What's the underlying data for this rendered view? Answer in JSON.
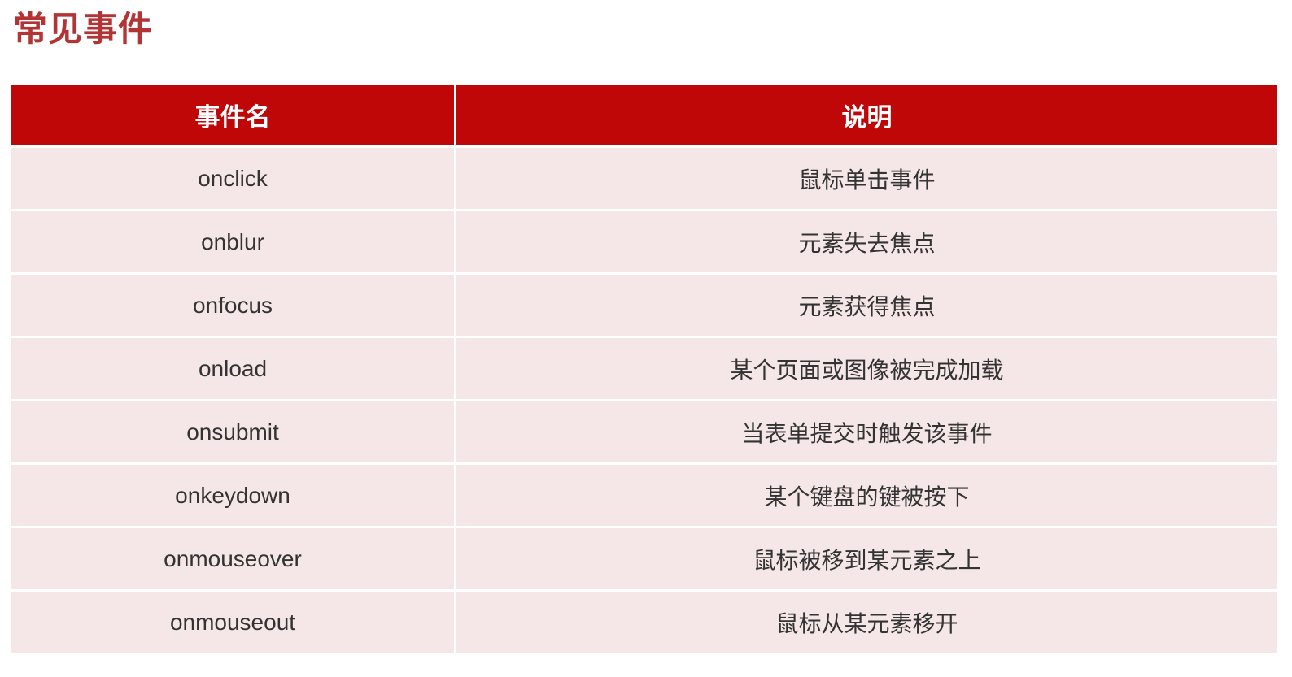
{
  "page": {
    "title": "常见事件",
    "background_color": "#ffffff"
  },
  "colors": {
    "title_text": "#b23434",
    "header_background": "#c00708",
    "header_text": "#ffffff",
    "row_background": "#f5e6e7",
    "row_text": "#333333",
    "cell_divider": "#ffffff"
  },
  "table": {
    "headers": [
      "事件名",
      "说明"
    ],
    "rows": [
      {
        "event": "onclick",
        "description": "鼠标单击事件"
      },
      {
        "event": "onblur",
        "description": "元素失去焦点"
      },
      {
        "event": "onfocus",
        "description": "元素获得焦点"
      },
      {
        "event": "onload",
        "description": "某个页面或图像被完成加载"
      },
      {
        "event": "onsubmit",
        "description": "当表单提交时触发该事件"
      },
      {
        "event": "onkeydown",
        "description": "某个键盘的键被按下"
      },
      {
        "event": "onmouseover",
        "description": "鼠标被移到某元素之上"
      },
      {
        "event": "onmouseout",
        "description": "鼠标从某元素移开"
      }
    ]
  }
}
